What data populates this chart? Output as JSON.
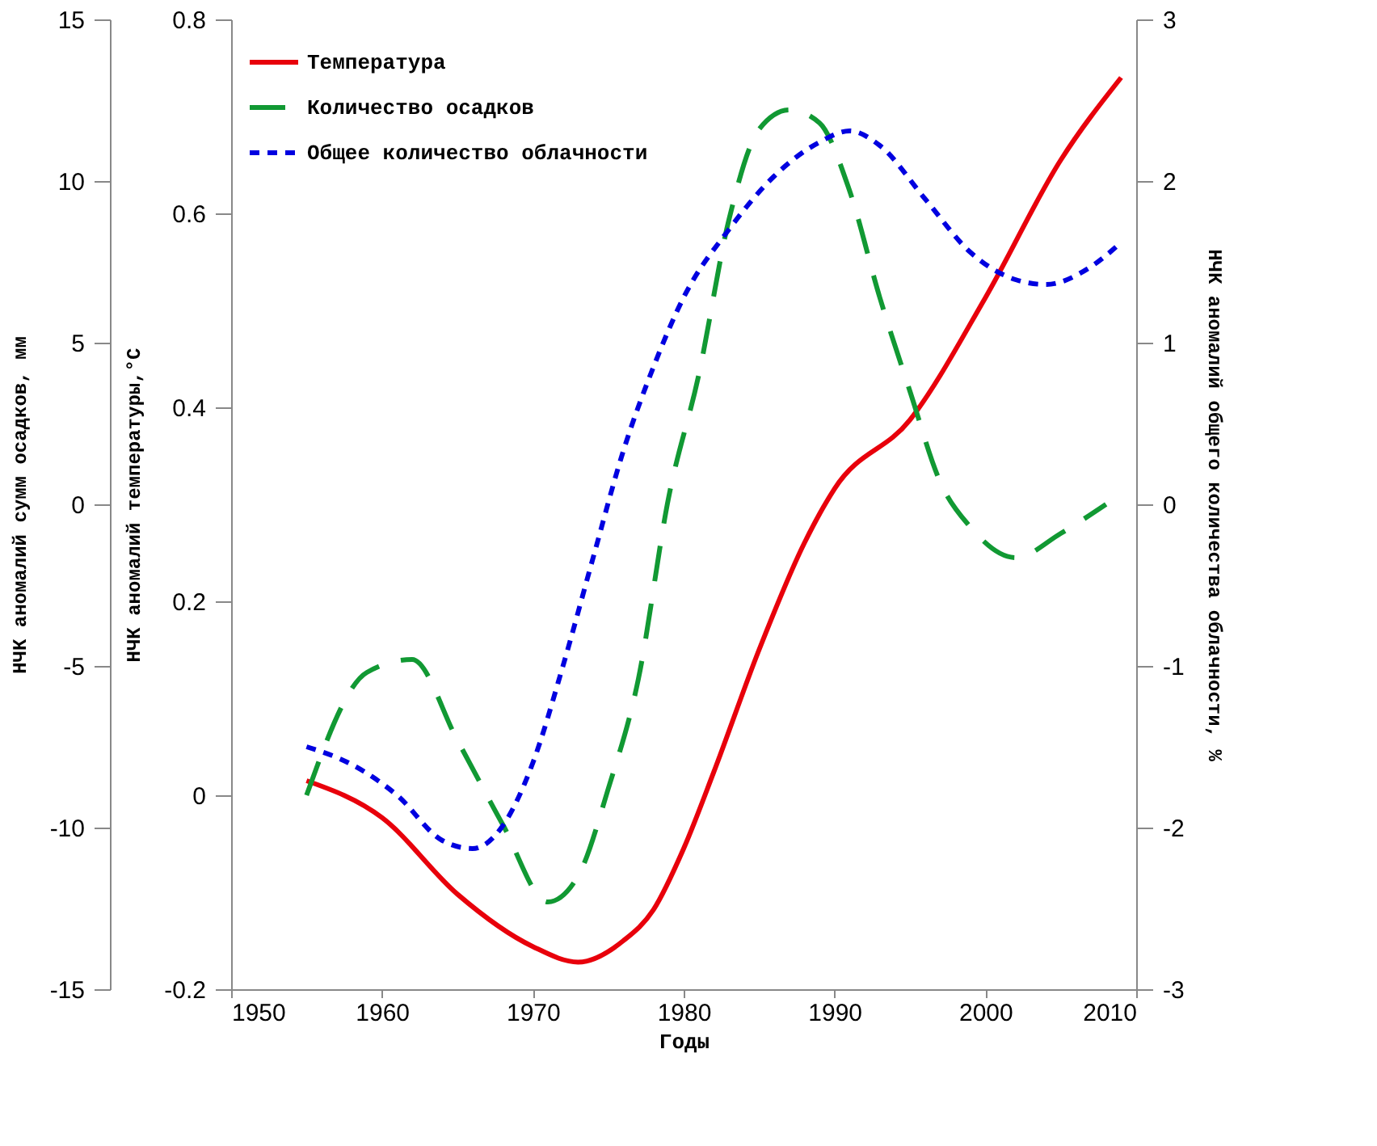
{
  "chart_data": {
    "type": "line",
    "xlabel": "Годы",
    "ylabel": "НЧК аномалий температуры,°С",
    "y2label": "НЧК аномалий общего количества облачности, %",
    "y3label": "НЧК аномалий сумм осадков, мм",
    "xlim": [
      1950,
      2010
    ],
    "xticks": [
      1950,
      1960,
      1970,
      1980,
      1990,
      2000,
      2010
    ],
    "ylim": [
      -0.2,
      0.8
    ],
    "yticks": [
      -0.2,
      0,
      0.2,
      0.4,
      0.6,
      0.8
    ],
    "y2lim": [
      -3,
      3
    ],
    "y2ticks": [
      -3,
      -2,
      -1,
      0,
      1,
      2,
      3
    ],
    "y3lim": [
      -15,
      15
    ],
    "y3ticks": [
      -15,
      -10,
      -5,
      0,
      5,
      10,
      15
    ],
    "grid": false,
    "legend": "top left",
    "marker": "none",
    "series": [
      {
        "name": "Температура",
        "color": "#e8000b",
        "line_style": "solid",
        "axis": "y",
        "x": [
          1955,
          1960,
          1965,
          1970,
          1973,
          1976,
          1978,
          1980,
          1982,
          1985,
          1988,
          1990,
          1995,
          2000,
          2005,
          2009
        ],
        "values": [
          0.015,
          -0.023,
          -0.102,
          -0.156,
          -0.172,
          -0.15,
          -0.118,
          -0.055,
          0.024,
          0.15,
          0.26,
          0.316,
          0.387,
          0.513,
          0.655,
          0.74
        ]
      },
      {
        "name": "Количество осадков",
        "color": "#119933",
        "line_style": "dashed",
        "axis": "y3",
        "x": [
          1955,
          1959,
          1962,
          1965,
          1968,
          1971,
          1973,
          1975,
          1977,
          1979,
          1981,
          1983,
          1985,
          1987,
          1989,
          1991,
          1993,
          1995,
          1997,
          1999,
          2002,
          2005,
          2008
        ],
        "values": [
          -9.0,
          -5.2,
          -4.8,
          -7.3,
          -9.9,
          -12.3,
          -11.5,
          -8.8,
          -5.4,
          0.2,
          4.0,
          8.8,
          11.6,
          12.2,
          11.8,
          9.7,
          6.4,
          3.5,
          0.7,
          -0.7,
          -1.65,
          -0.9,
          0.0
        ]
      },
      {
        "name": "Общее количество облачности",
        "color": "#0000e0",
        "line_style": "dotted",
        "axis": "y2",
        "x": [
          1955,
          1958,
          1961,
          1964,
          1966,
          1968,
          1970,
          1972,
          1974,
          1976,
          1978,
          1980,
          1983,
          1986,
          1989,
          1991,
          1993,
          1996,
          1999,
          2002,
          2004,
          2007,
          2009
        ],
        "values": [
          -1.5,
          -1.61,
          -1.8,
          -2.08,
          -2.13,
          -1.99,
          -1.6,
          -1.0,
          -0.33,
          0.33,
          0.85,
          1.28,
          1.7,
          2.03,
          2.24,
          2.31,
          2.22,
          1.89,
          1.56,
          1.39,
          1.36,
          1.47,
          1.62
        ]
      }
    ]
  }
}
